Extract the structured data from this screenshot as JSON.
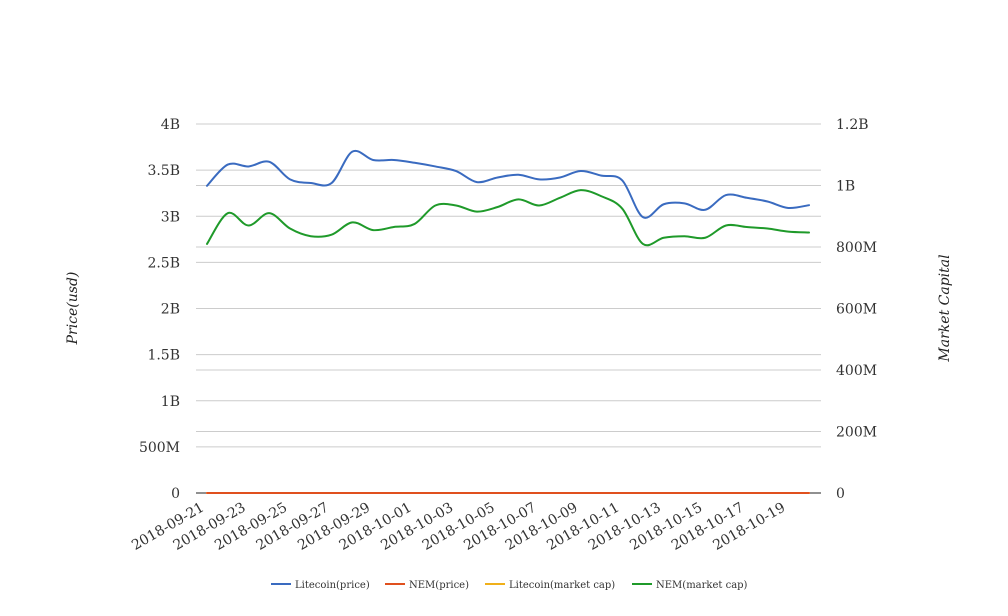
{
  "chart_data": {
    "type": "line",
    "title": "",
    "ylabel": "Price(usd)",
    "y2label": "Market Capital",
    "grid": true,
    "legend_position": "bottom",
    "ylim": [
      0,
      4000000000
    ],
    "y2lim": [
      0,
      1200000000
    ],
    "y_ticks": [
      "0",
      "500M",
      "1B",
      "1.5B",
      "2B",
      "2.5B",
      "3B",
      "3.5B",
      "4B"
    ],
    "y2_ticks": [
      "0",
      "200M",
      "400M",
      "600M",
      "800M",
      "1B",
      "1.2B"
    ],
    "x": [
      "2018-09-21",
      "2018-09-22",
      "2018-09-23",
      "2018-09-24",
      "2018-09-25",
      "2018-09-26",
      "2018-09-27",
      "2018-09-28",
      "2018-09-29",
      "2018-09-30",
      "2018-10-01",
      "2018-10-02",
      "2018-10-03",
      "2018-10-04",
      "2018-10-05",
      "2018-10-06",
      "2018-10-07",
      "2018-10-08",
      "2018-10-09",
      "2018-10-10",
      "2018-10-11",
      "2018-10-12",
      "2018-10-13",
      "2018-10-14",
      "2018-10-15",
      "2018-10-16",
      "2018-10-17",
      "2018-10-18",
      "2018-10-19",
      "2018-10-20"
    ],
    "x_tick_labels": [
      "2018-09-21",
      "2018-09-23",
      "2018-09-25",
      "2018-09-27",
      "2018-09-29",
      "2018-10-01",
      "2018-10-03",
      "2018-10-05",
      "2018-10-07",
      "2018-10-09",
      "2018-10-11",
      "2018-10-13",
      "2018-10-15",
      "2018-10-17",
      "2018-10-19"
    ],
    "series": [
      {
        "name": "Litecoin(price)",
        "axis": "left",
        "color": "#3a6bc0",
        "values": [
          3330000000,
          3560000000,
          3540000000,
          3590000000,
          3400000000,
          3360000000,
          3360000000,
          3700000000,
          3610000000,
          3610000000,
          3580000000,
          3540000000,
          3490000000,
          3370000000,
          3420000000,
          3450000000,
          3400000000,
          3420000000,
          3490000000,
          3440000000,
          3390000000,
          2990000000,
          3130000000,
          3140000000,
          3070000000,
          3230000000,
          3200000000,
          3160000000,
          3090000000,
          3120000000
        ]
      },
      {
        "name": "NEM(price)",
        "axis": "left",
        "color": "#e0501e",
        "values": [
          0.0,
          0.0,
          0.0,
          0.0,
          0.0,
          0.0,
          0.0,
          0.0,
          0.0,
          0.0,
          0.0,
          0.0,
          0.0,
          0.0,
          0.0,
          0.0,
          0.0,
          0.0,
          0.0,
          0.0,
          0.0,
          0.0,
          0.0,
          0.0,
          0.0,
          0.0,
          0.0,
          0.0,
          0.0,
          0.0
        ]
      },
      {
        "name": "Litecoin(market cap)",
        "axis": "left",
        "color": "#f0b01a",
        "values": [
          0.0,
          0.0,
          0.0,
          0.0,
          0.0,
          0.0,
          0.0,
          0.0,
          0.0,
          0.0,
          0.0,
          0.0,
          0.0,
          0.0,
          0.0,
          0.0,
          0.0,
          0.0,
          0.0,
          0.0,
          0.0,
          0.0,
          0.0,
          0.0,
          0.0,
          0.0,
          0.0,
          0.0,
          0.0,
          0.0
        ]
      },
      {
        "name": "NEM(market cap)",
        "axis": "right",
        "color": "#1f9a2a",
        "values": [
          810000000,
          910000000,
          870000000,
          910000000,
          860000000,
          835000000,
          840000000,
          880000000,
          855000000,
          865000000,
          875000000,
          935000000,
          935000000,
          915000000,
          930000000,
          955000000,
          935000000,
          960000000,
          985000000,
          965000000,
          925000000,
          810000000,
          830000000,
          835000000,
          830000000,
          870000000,
          865000000,
          860000000,
          850000000,
          847000000
        ]
      }
    ]
  }
}
